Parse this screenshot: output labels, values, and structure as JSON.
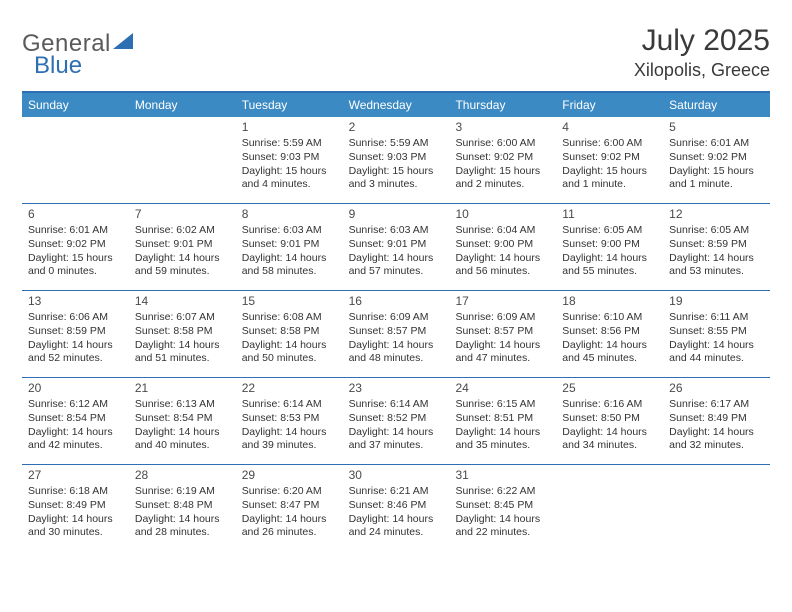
{
  "brand": {
    "text1": "General",
    "text2": "Blue"
  },
  "title": "July 2025",
  "location": "Xilopolis, Greece",
  "colors": {
    "header_bg": "#3b8ac4",
    "border": "#2e6fb4",
    "brand_gray": "#5a5a5a",
    "brand_blue": "#2e6fb4",
    "text": "#333333"
  },
  "weekdays": [
    "Sunday",
    "Monday",
    "Tuesday",
    "Wednesday",
    "Thursday",
    "Friday",
    "Saturday"
  ],
  "weeks": [
    [
      null,
      null,
      {
        "n": "1",
        "sr": "5:59 AM",
        "ss": "9:03 PM",
        "dl": "15 hours and 4 minutes."
      },
      {
        "n": "2",
        "sr": "5:59 AM",
        "ss": "9:03 PM",
        "dl": "15 hours and 3 minutes."
      },
      {
        "n": "3",
        "sr": "6:00 AM",
        "ss": "9:02 PM",
        "dl": "15 hours and 2 minutes."
      },
      {
        "n": "4",
        "sr": "6:00 AM",
        "ss": "9:02 PM",
        "dl": "15 hours and 1 minute."
      },
      {
        "n": "5",
        "sr": "6:01 AM",
        "ss": "9:02 PM",
        "dl": "15 hours and 1 minute."
      }
    ],
    [
      {
        "n": "6",
        "sr": "6:01 AM",
        "ss": "9:02 PM",
        "dl": "15 hours and 0 minutes."
      },
      {
        "n": "7",
        "sr": "6:02 AM",
        "ss": "9:01 PM",
        "dl": "14 hours and 59 minutes."
      },
      {
        "n": "8",
        "sr": "6:03 AM",
        "ss": "9:01 PM",
        "dl": "14 hours and 58 minutes."
      },
      {
        "n": "9",
        "sr": "6:03 AM",
        "ss": "9:01 PM",
        "dl": "14 hours and 57 minutes."
      },
      {
        "n": "10",
        "sr": "6:04 AM",
        "ss": "9:00 PM",
        "dl": "14 hours and 56 minutes."
      },
      {
        "n": "11",
        "sr": "6:05 AM",
        "ss": "9:00 PM",
        "dl": "14 hours and 55 minutes."
      },
      {
        "n": "12",
        "sr": "6:05 AM",
        "ss": "8:59 PM",
        "dl": "14 hours and 53 minutes."
      }
    ],
    [
      {
        "n": "13",
        "sr": "6:06 AM",
        "ss": "8:59 PM",
        "dl": "14 hours and 52 minutes."
      },
      {
        "n": "14",
        "sr": "6:07 AM",
        "ss": "8:58 PM",
        "dl": "14 hours and 51 minutes."
      },
      {
        "n": "15",
        "sr": "6:08 AM",
        "ss": "8:58 PM",
        "dl": "14 hours and 50 minutes."
      },
      {
        "n": "16",
        "sr": "6:09 AM",
        "ss": "8:57 PM",
        "dl": "14 hours and 48 minutes."
      },
      {
        "n": "17",
        "sr": "6:09 AM",
        "ss": "8:57 PM",
        "dl": "14 hours and 47 minutes."
      },
      {
        "n": "18",
        "sr": "6:10 AM",
        "ss": "8:56 PM",
        "dl": "14 hours and 45 minutes."
      },
      {
        "n": "19",
        "sr": "6:11 AM",
        "ss": "8:55 PM",
        "dl": "14 hours and 44 minutes."
      }
    ],
    [
      {
        "n": "20",
        "sr": "6:12 AM",
        "ss": "8:54 PM",
        "dl": "14 hours and 42 minutes."
      },
      {
        "n": "21",
        "sr": "6:13 AM",
        "ss": "8:54 PM",
        "dl": "14 hours and 40 minutes."
      },
      {
        "n": "22",
        "sr": "6:14 AM",
        "ss": "8:53 PM",
        "dl": "14 hours and 39 minutes."
      },
      {
        "n": "23",
        "sr": "6:14 AM",
        "ss": "8:52 PM",
        "dl": "14 hours and 37 minutes."
      },
      {
        "n": "24",
        "sr": "6:15 AM",
        "ss": "8:51 PM",
        "dl": "14 hours and 35 minutes."
      },
      {
        "n": "25",
        "sr": "6:16 AM",
        "ss": "8:50 PM",
        "dl": "14 hours and 34 minutes."
      },
      {
        "n": "26",
        "sr": "6:17 AM",
        "ss": "8:49 PM",
        "dl": "14 hours and 32 minutes."
      }
    ],
    [
      {
        "n": "27",
        "sr": "6:18 AM",
        "ss": "8:49 PM",
        "dl": "14 hours and 30 minutes."
      },
      {
        "n": "28",
        "sr": "6:19 AM",
        "ss": "8:48 PM",
        "dl": "14 hours and 28 minutes."
      },
      {
        "n": "29",
        "sr": "6:20 AM",
        "ss": "8:47 PM",
        "dl": "14 hours and 26 minutes."
      },
      {
        "n": "30",
        "sr": "6:21 AM",
        "ss": "8:46 PM",
        "dl": "14 hours and 24 minutes."
      },
      {
        "n": "31",
        "sr": "6:22 AM",
        "ss": "8:45 PM",
        "dl": "14 hours and 22 minutes."
      },
      null,
      null
    ]
  ],
  "labels": {
    "sunrise": "Sunrise: ",
    "sunset": "Sunset: ",
    "daylight": "Daylight: "
  }
}
